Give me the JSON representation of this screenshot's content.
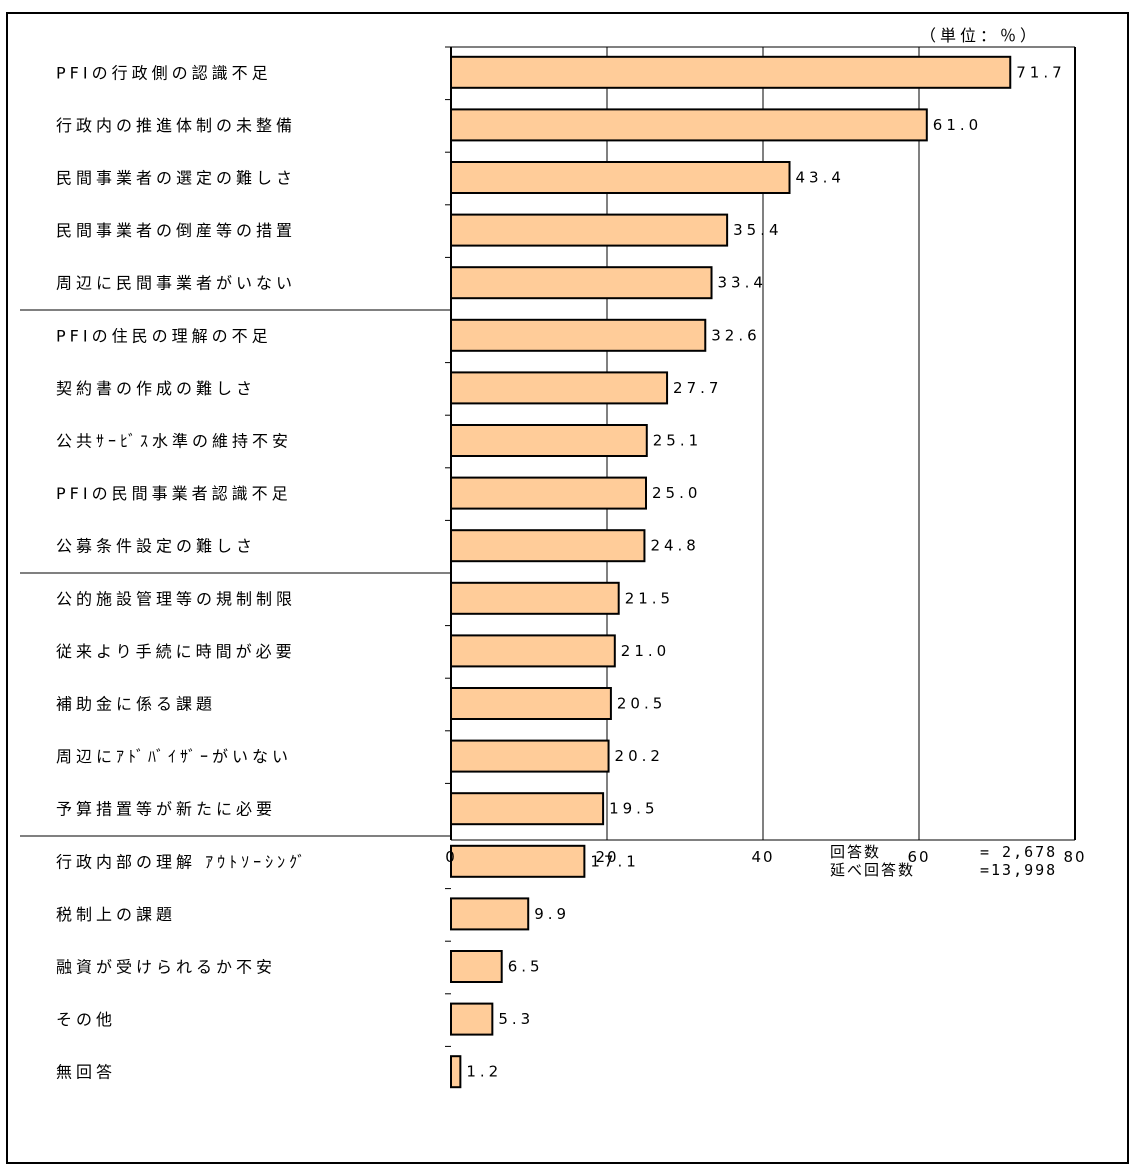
{
  "chart_data": {
    "type": "bar",
    "orientation": "horizontal",
    "unit_label": "（単位：％）",
    "categories": [
      "PFIの行政側の認識不足",
      "行政内の推進体制の未整備",
      "民間事業者の選定の難しさ",
      "民間事業者の倒産等の措置",
      "周辺に民間事業者がいない",
      "PFIの住民の理解の不足",
      "契約書の作成の難しさ",
      "公共ｻｰﾋﾞｽ水準の維持不安",
      "PFIの民間事業者認識不足",
      "公募条件設定の難しさ",
      "公的施設管理等の規制制限",
      "従来より手続に時間が必要",
      "補助金に係る課題",
      "周辺にｱﾄﾞﾊﾞｲｻﾞｰがいない",
      "予算措置等が新たに必要",
      "行政内部の理解 ｱｳﾄｿｰｼﾝｸﾞ",
      "税制上の課題",
      "融資が受けられるか不安",
      "その他",
      "無回答"
    ],
    "values": [
      71.7,
      61.0,
      43.4,
      35.4,
      33.4,
      32.6,
      27.7,
      25.1,
      25.0,
      24.8,
      21.5,
      21.0,
      20.5,
      20.2,
      19.5,
      17.1,
      9.9,
      6.5,
      5.3,
      1.2
    ],
    "value_labels": [
      "71.7",
      "61.0",
      "43.4",
      "35.4",
      "33.4",
      "32.6",
      "27.7",
      "25.1",
      "25.0",
      "24.8",
      "21.5",
      "21.0",
      "20.5",
      "20.2",
      "19.5",
      "17.1",
      "9.9",
      "6.5",
      "5.3",
      "1.2"
    ],
    "xlim": [
      0,
      80
    ],
    "xticks": [
      "0",
      "20",
      "40",
      "60",
      "80"
    ],
    "grid": "vertical",
    "group_separators_after": [
      5,
      10,
      15
    ],
    "bar_color": "#FFCC99",
    "bar_edge_color": "#000000",
    "note": {
      "responses_label": "回答数",
      "responses_value": "= 2,678",
      "total_label": "延べ回答数",
      "total_value": "=13,998"
    }
  }
}
